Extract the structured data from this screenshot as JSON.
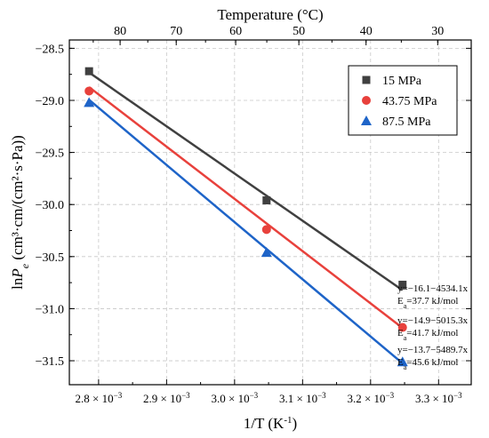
{
  "chart_data": {
    "type": "scatter",
    "title": "",
    "xlabel": "1/T (K",
    "xlabel_sup": "-1",
    "xlabel_end": ")",
    "ylabel": "lnP",
    "ylabel_sub": "e",
    "ylabel_units": "(cm³·cm/(cm²·s·Pa))",
    "top_axis_label": "Temperature (°C)",
    "xlim": [
      0.002757,
      0.003348
    ],
    "ylim": [
      -31.73,
      -28.42
    ],
    "x_ticks": [
      0.0028,
      0.0029,
      0.003,
      0.0031,
      0.0032,
      0.0033
    ],
    "x_tick_mantissas": [
      "2.8",
      "2.9",
      "3.0",
      "3.1",
      "3.2",
      "3.3"
    ],
    "x_tick_suffix": "× 10",
    "x_tick_exponent": "−3",
    "y_ticks": [
      -28.5,
      -29.0,
      -29.5,
      -30.0,
      -30.5,
      -31.0,
      -31.5
    ],
    "y_tick_labels": [
      "−28.5",
      "−29.0",
      "−29.5",
      "−30.0",
      "−30.5",
      "−31.0",
      "−31.5"
    ],
    "top_ticks_celsius": [
      80,
      70,
      60,
      50,
      40,
      30
    ],
    "top_tick_labels": [
      "80",
      "70",
      "60",
      "50",
      "40",
      "30"
    ],
    "grid": true,
    "legend_position": "top-right",
    "series": [
      {
        "name": "15 MPa",
        "color": "#404040",
        "marker": "square",
        "x": [
          0.002786,
          0.003047,
          0.003247
        ],
        "y": [
          -28.72,
          -29.96,
          -30.77
        ],
        "fit": {
          "intercept": -16.1,
          "slope": -4534.1
        },
        "annotation_eq": "y=−16.1−4534.1x",
        "annotation_ea": "=37.7 kJ/mol"
      },
      {
        "name": "43.75 MPa",
        "color": "#e8413c",
        "marker": "circle",
        "x": [
          0.002786,
          0.003047,
          0.003247
        ],
        "y": [
          -28.91,
          -30.24,
          -31.18
        ],
        "fit": {
          "intercept": -14.9,
          "slope": -5015.3
        },
        "annotation_eq": "y=−14.9−5015.3x",
        "annotation_ea": "=41.7 kJ/mol"
      },
      {
        "name": "87.5 MPa",
        "color": "#1e64c8",
        "marker": "triangle",
        "x": [
          0.002786,
          0.003047,
          0.003247
        ],
        "y": [
          -29.02,
          -30.46,
          -31.51
        ],
        "fit": {
          "intercept": -13.7,
          "slope": -5489.7
        },
        "annotation_eq": "y=−13.7−5489.7x",
        "annotation_ea": "=45.6 kJ/mol"
      }
    ],
    "ea_symbol": "E",
    "ea_sub": "a"
  }
}
